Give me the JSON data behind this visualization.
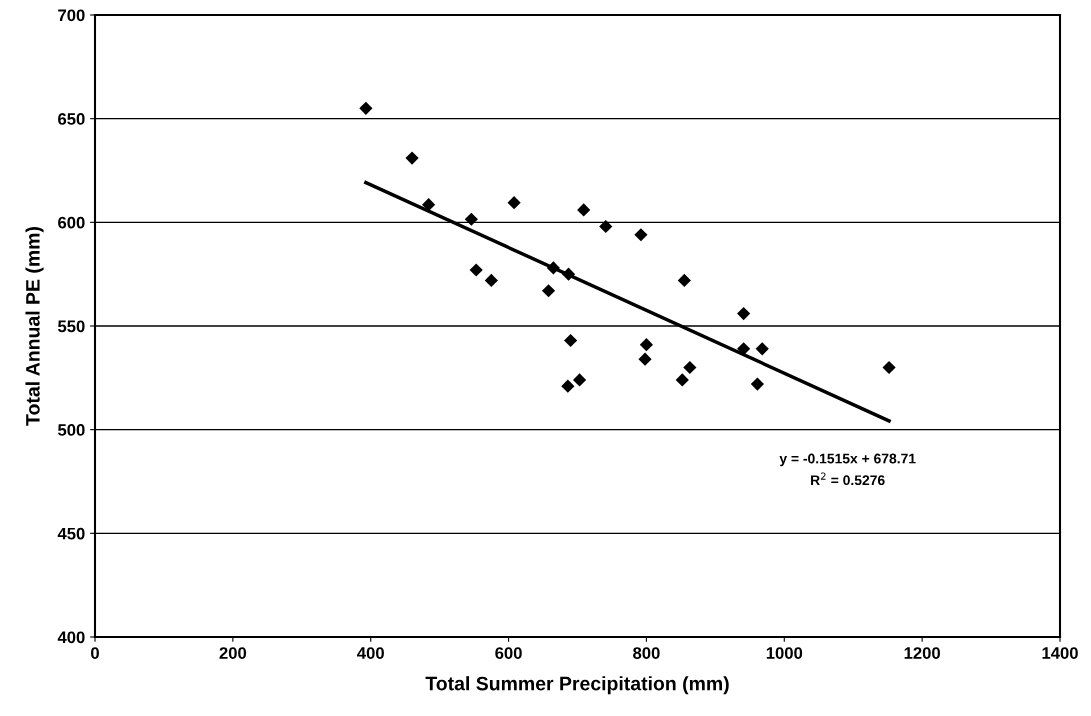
{
  "chart_data": {
    "type": "scatter",
    "xlabel": "Total Summer Precipitation (mm)",
    "ylabel": "Total Annual PE (mm)",
    "series": [
      {
        "color": "#000000",
        "marker": "diamond",
        "x": [
          393,
          460,
          484,
          546,
          608,
          709,
          741,
          792,
          553,
          575,
          658,
          665,
          687,
          855,
          941,
          800,
          798,
          863,
          852,
          941,
          968,
          961,
          1152,
          686,
          703,
          690
        ],
        "values": [
          655,
          631,
          608.5,
          601.5,
          609.5,
          606,
          598,
          594,
          577,
          572,
          567,
          578,
          575,
          572,
          556,
          541,
          534,
          530,
          524,
          539,
          539,
          522,
          530,
          521,
          524,
          543
        ]
      },
      {
        "type": "line",
        "color": "#000000",
        "marker": "none",
        "line_style": "solid",
        "x": [
          393,
          1152
        ],
        "values": [
          619.2,
          504.2
        ]
      }
    ],
    "annotations": [
      "y = -0.1515x + 678.71",
      "R$^{2}$ = 0.5276"
    ],
    "xlim": [
      0,
      1400
    ],
    "xticks": [
      0,
      200,
      400,
      600,
      800,
      1000,
      1200,
      1400
    ],
    "ylim": [
      400,
      700
    ],
    "yticks": [
      400,
      450,
      500,
      550,
      600,
      650,
      700
    ],
    "grid": "y"
  }
}
